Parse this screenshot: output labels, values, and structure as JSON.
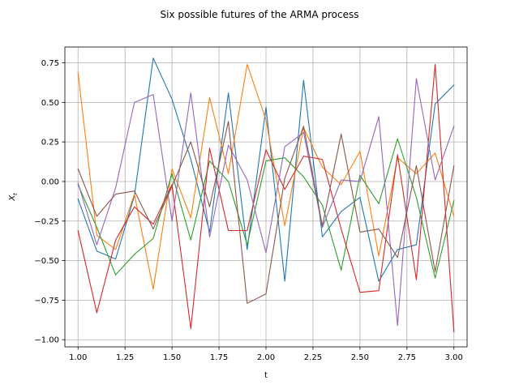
{
  "chart_data": {
    "type": "line",
    "title": "Six possible futures of the ARMA process",
    "xlabel": "t",
    "ylabel": "X_t",
    "xlim": [
      0.93,
      3.07
    ],
    "ylim": [
      -1.045,
      0.85
    ],
    "x_ticks": [
      1.0,
      1.25,
      1.5,
      1.75,
      2.0,
      2.25,
      2.5,
      2.75,
      3.0
    ],
    "x_tick_labels": [
      "1.00",
      "1.25",
      "1.50",
      "1.75",
      "2.00",
      "2.25",
      "2.50",
      "2.75",
      "3.00"
    ],
    "y_ticks": [
      -1.0,
      -0.75,
      -0.5,
      -0.25,
      0.0,
      0.25,
      0.5,
      0.75
    ],
    "y_tick_labels": [
      "−1.00",
      "−0.75",
      "−0.50",
      "−0.25",
      "0.00",
      "0.25",
      "0.50",
      "0.75"
    ],
    "grid": true,
    "legend": false,
    "x": [
      1.0,
      1.1,
      1.2,
      1.3,
      1.4,
      1.5,
      1.6,
      1.7,
      1.8,
      1.9,
      2.0,
      2.1,
      2.2,
      2.3,
      2.4,
      2.5,
      2.6,
      2.7,
      2.8,
      2.9,
      3.0
    ],
    "series": [
      {
        "color": "#1f77b4",
        "values": [
          -0.11,
          -0.44,
          -0.49,
          -0.09,
          0.78,
          0.52,
          0.14,
          -0.32,
          0.56,
          -0.43,
          0.47,
          -0.63,
          0.64,
          -0.35,
          -0.19,
          -0.1,
          -0.63,
          -0.43,
          -0.4,
          0.49,
          0.61
        ]
      },
      {
        "color": "#ff7f0e",
        "values": [
          0.69,
          -0.34,
          -0.43,
          -0.08,
          -0.68,
          0.08,
          -0.23,
          0.53,
          0.05,
          0.74,
          0.39,
          -0.28,
          0.34,
          0.09,
          -0.02,
          0.19,
          -0.47,
          0.15,
          0.05,
          0.18,
          -0.22
        ]
      },
      {
        "color": "#2ca02c",
        "values": [
          -0.02,
          -0.29,
          -0.59,
          -0.46,
          -0.36,
          0.05,
          -0.37,
          0.13,
          0.0,
          -0.4,
          0.13,
          0.15,
          0.03,
          -0.15,
          -0.56,
          0.04,
          -0.14,
          0.27,
          -0.1,
          -0.61,
          -0.12
        ]
      },
      {
        "color": "#d62728",
        "values": [
          -0.31,
          -0.83,
          -0.37,
          -0.16,
          -0.27,
          -0.02,
          -0.93,
          0.21,
          -0.31,
          -0.31,
          0.2,
          -0.05,
          0.16,
          0.14,
          -0.3,
          -0.7,
          -0.69,
          0.17,
          -0.62,
          0.74,
          -0.95
        ]
      },
      {
        "color": "#9467bd",
        "values": [
          -0.01,
          -0.4,
          -0.04,
          0.5,
          0.55,
          -0.25,
          0.56,
          -0.35,
          0.23,
          0.01,
          -0.45,
          0.22,
          0.31,
          -0.29,
          0.01,
          0.0,
          0.41,
          -0.91,
          0.65,
          0.01,
          0.35
        ]
      },
      {
        "color": "#8c564b",
        "values": [
          0.08,
          -0.22,
          -0.08,
          -0.06,
          -0.3,
          -0.03,
          0.25,
          -0.16,
          0.38,
          -0.77,
          -0.71,
          0.02,
          0.35,
          -0.28,
          0.3,
          -0.32,
          -0.3,
          -0.48,
          0.1,
          -0.57,
          0.1
        ]
      }
    ]
  }
}
